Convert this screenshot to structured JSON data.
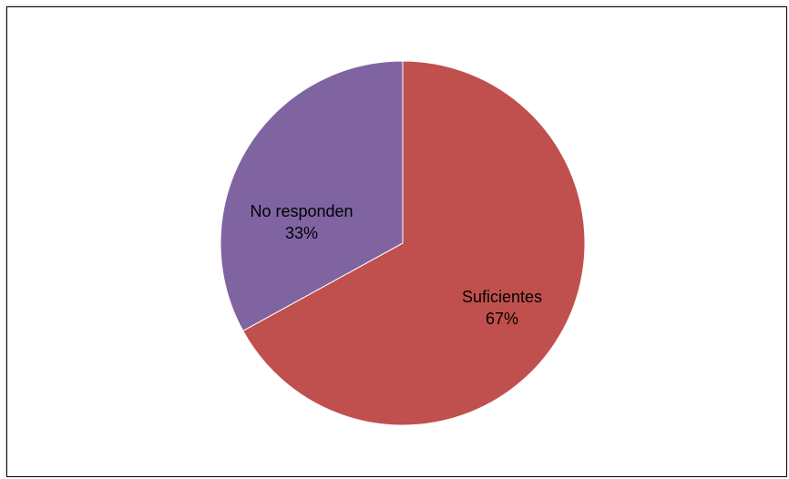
{
  "chart_data": {
    "type": "pie",
    "title": "",
    "slices": [
      {
        "label": "Suficientes",
        "value": 67,
        "percent_label": "67%",
        "color": "#C0504D"
      },
      {
        "label": "No responden",
        "value": 33,
        "percent_label": "33%",
        "color": "#8064A2"
      }
    ],
    "start": "12 o'clock",
    "direction": "clockwise",
    "legend": "none"
  }
}
